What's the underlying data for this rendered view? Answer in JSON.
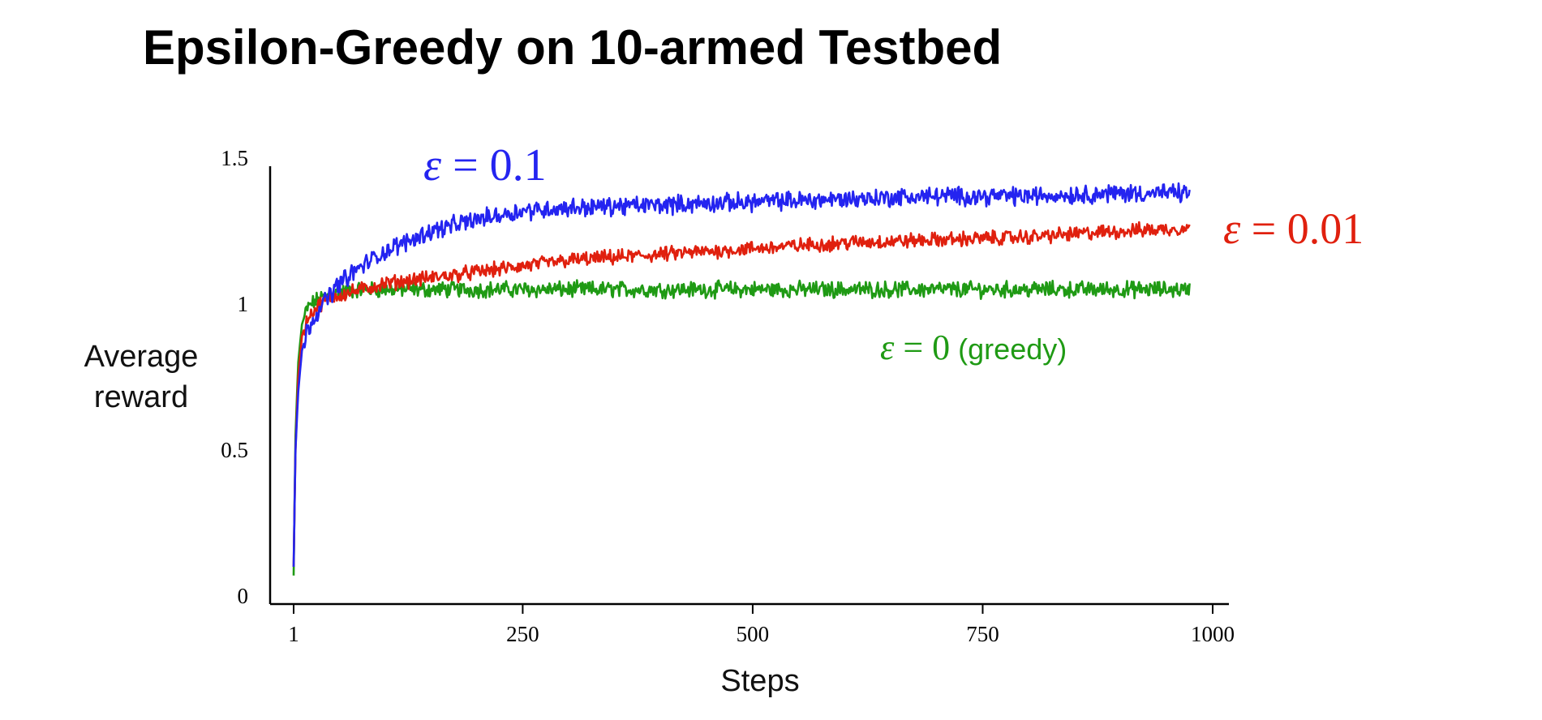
{
  "title": "Epsilon-Greedy on 10-armed Testbed",
  "colors": {
    "blue": "#2424f0",
    "red": "#e0200e",
    "green": "#1f9a14",
    "axis": "#000000"
  },
  "chart_data": {
    "type": "line",
    "xlabel": "Steps",
    "ylabel_lines": [
      "Average",
      "reward"
    ],
    "xlim": [
      1,
      1000
    ],
    "ylim": [
      0,
      1.5
    ],
    "x_ticks": [
      {
        "value": 1,
        "label": "1"
      },
      {
        "value": 250,
        "label": "250"
      },
      {
        "value": 500,
        "label": "500"
      },
      {
        "value": 750,
        "label": "750"
      },
      {
        "value": 1000,
        "label": "1000"
      }
    ],
    "y_ticks": [
      {
        "value": 0,
        "label": "0"
      },
      {
        "value": 0.5,
        "label": "0.5"
      },
      {
        "value": 1,
        "label": "1"
      },
      {
        "value": 1.5,
        "label": "1.5"
      }
    ],
    "series": [
      {
        "id": "greedy",
        "color_key": "green",
        "label_greek": "ε",
        "label_eq": " = 0",
        "label_suffix": " (greedy)",
        "x": [
          1,
          3,
          6,
          10,
          15,
          20,
          30,
          40,
          50,
          75,
          100,
          150,
          200,
          250,
          300,
          400,
          500,
          600,
          700,
          800,
          900,
          975
        ],
        "y": [
          0.07,
          0.55,
          0.8,
          0.93,
          0.98,
          1.0,
          1.02,
          1.03,
          1.04,
          1.05,
          1.05,
          1.05,
          1.05,
          1.05,
          1.05,
          1.05,
          1.05,
          1.05,
          1.05,
          1.05,
          1.05,
          1.05
        ],
        "noise": 0.022
      },
      {
        "id": "eps001",
        "color_key": "red",
        "label_greek": "ε",
        "label_eq": " = 0.01",
        "label_suffix": "",
        "x": [
          1,
          3,
          6,
          10,
          15,
          20,
          30,
          40,
          50,
          75,
          100,
          150,
          200,
          250,
          300,
          400,
          500,
          600,
          700,
          800,
          900,
          975
        ],
        "y": [
          0.1,
          0.5,
          0.75,
          0.89,
          0.94,
          0.97,
          1.0,
          1.02,
          1.03,
          1.05,
          1.07,
          1.09,
          1.11,
          1.13,
          1.15,
          1.17,
          1.19,
          1.21,
          1.22,
          1.23,
          1.25,
          1.26
        ],
        "noise": 0.02
      },
      {
        "id": "eps01",
        "color_key": "blue",
        "label_greek": "ε",
        "label_eq": " = 0.1",
        "label_suffix": "",
        "x": [
          1,
          3,
          6,
          10,
          15,
          20,
          30,
          40,
          50,
          75,
          100,
          150,
          200,
          250,
          300,
          400,
          500,
          600,
          700,
          800,
          900,
          975
        ],
        "y": [
          0.1,
          0.5,
          0.7,
          0.84,
          0.9,
          0.94,
          0.99,
          1.03,
          1.07,
          1.13,
          1.18,
          1.25,
          1.29,
          1.32,
          1.33,
          1.34,
          1.35,
          1.36,
          1.37,
          1.37,
          1.38,
          1.38
        ],
        "noise": 0.025
      }
    ]
  }
}
